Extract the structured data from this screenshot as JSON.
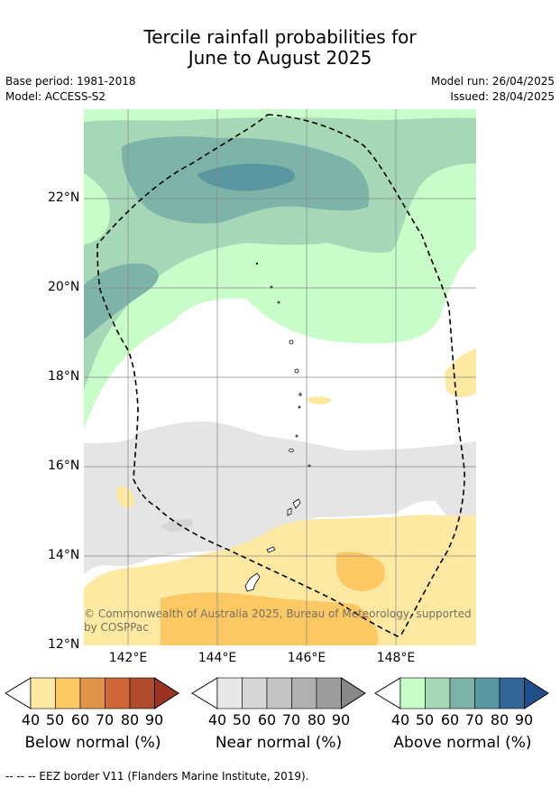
{
  "title": {
    "line1": "Tercile rainfall probabilities for",
    "line2": "June to August 2025"
  },
  "meta": {
    "base_period": "Base period: 1981-2018",
    "model": "Model: ACCESS-S2",
    "model_run": "Model run: 26/04/2025",
    "issued": "Issued: 28/04/2025"
  },
  "map": {
    "lat_labels": [
      "22°N",
      "20°N",
      "18°N",
      "16°N",
      "14°N",
      "12°N"
    ],
    "lon_labels": [
      "142°E",
      "144°E",
      "146°E",
      "148°E"
    ],
    "copyright_line1": "© Commonwealth of Australia 2025, Bureau of Meteorology, supported",
    "copyright_line2": "by COSPPac"
  },
  "colorbars": [
    {
      "label": "Below normal (%)",
      "ticks": [
        "40",
        "50",
        "60",
        "70",
        "80",
        "90"
      ],
      "colors": [
        "#fde9a2",
        "#fcc864",
        "#e0944a",
        "#cf6637",
        "#b04a2a",
        "#9c3322"
      ]
    },
    {
      "label": "Near normal (%)",
      "ticks": [
        "40",
        "50",
        "60",
        "70",
        "80",
        "90"
      ],
      "colors": [
        "#e8e8e8",
        "#d6d6d6",
        "#c4c4c4",
        "#b0b0b0",
        "#9c9c9c",
        "#888888"
      ]
    },
    {
      "label": "Above normal (%)",
      "ticks": [
        "40",
        "50",
        "60",
        "70",
        "80",
        "90"
      ],
      "colors": [
        "#c8fcc8",
        "#a6d8b8",
        "#7db3a8",
        "#5a96a0",
        "#336699",
        "#1f4f88"
      ]
    }
  ],
  "footer": "--  --  -- EEZ border V11 (Flanders Marine Institute, 2019)."
}
